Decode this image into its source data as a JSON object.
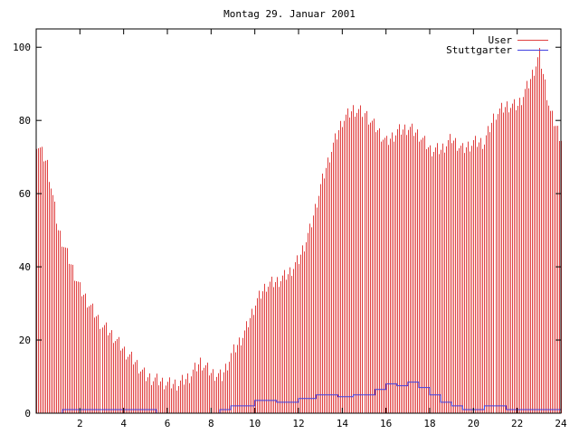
{
  "chart_data": {
    "type": "bar",
    "title": "Montag 29. Januar 2001",
    "xlabel": "",
    "ylabel": "",
    "xlim": [
      0,
      24
    ],
    "ylim": [
      0,
      105
    ],
    "grid": false,
    "legend": "top-right",
    "x_ticks": [
      "2",
      "4",
      "6",
      "8",
      "10",
      "12",
      "14",
      "16",
      "18",
      "20",
      "22",
      "24"
    ],
    "y_ticks": [
      "0",
      "20",
      "40",
      "60",
      "80",
      "100"
    ],
    "series": [
      {
        "name": "User",
        "style": "impulses",
        "color": "#e04040",
        "x": [
          0,
          0.5,
          1,
          1.5,
          2,
          2.5,
          3,
          3.5,
          4,
          4.5,
          5,
          5.5,
          6,
          6.5,
          7,
          7.5,
          8,
          8.5,
          9,
          9.5,
          10,
          10.5,
          11,
          11.5,
          12,
          12.5,
          13,
          13.5,
          14,
          14.5,
          15,
          15.5,
          16,
          16.5,
          17,
          17.5,
          18,
          18.5,
          19,
          19.5,
          20,
          20.5,
          21,
          21.5,
          22,
          22.5,
          23,
          23.5,
          24
        ],
        "values": [
          74,
          68,
          50,
          42,
          34,
          29,
          24,
          21,
          17,
          14,
          10,
          9,
          8,
          8,
          10,
          14,
          11,
          10,
          17,
          22,
          30,
          35,
          36,
          38,
          42,
          50,
          62,
          72,
          80,
          83,
          82,
          78,
          74,
          77,
          78,
          76,
          72,
          72,
          75,
          72,
          74,
          74,
          82,
          84,
          84,
          90,
          98,
          82,
          75
        ]
      },
      {
        "name": "Stuttgarter",
        "style": "steps",
        "color": "#4040e0",
        "x": [
          0,
          1.2,
          1.8,
          5.5,
          8.4,
          8.9,
          10,
          11,
          11.6,
          12,
          12.8,
          13.8,
          14.5,
          15,
          15.5,
          16,
          16.5,
          17,
          17.5,
          18,
          18.5,
          19,
          19.5,
          20.5,
          21.5,
          24
        ],
        "values": [
          0,
          1,
          1,
          0,
          1,
          2,
          3.5,
          3,
          3,
          4,
          5,
          4.5,
          5,
          5,
          6.5,
          8,
          7.5,
          8.5,
          7,
          5,
          3,
          2,
          1,
          2,
          1,
          1
        ]
      }
    ]
  }
}
